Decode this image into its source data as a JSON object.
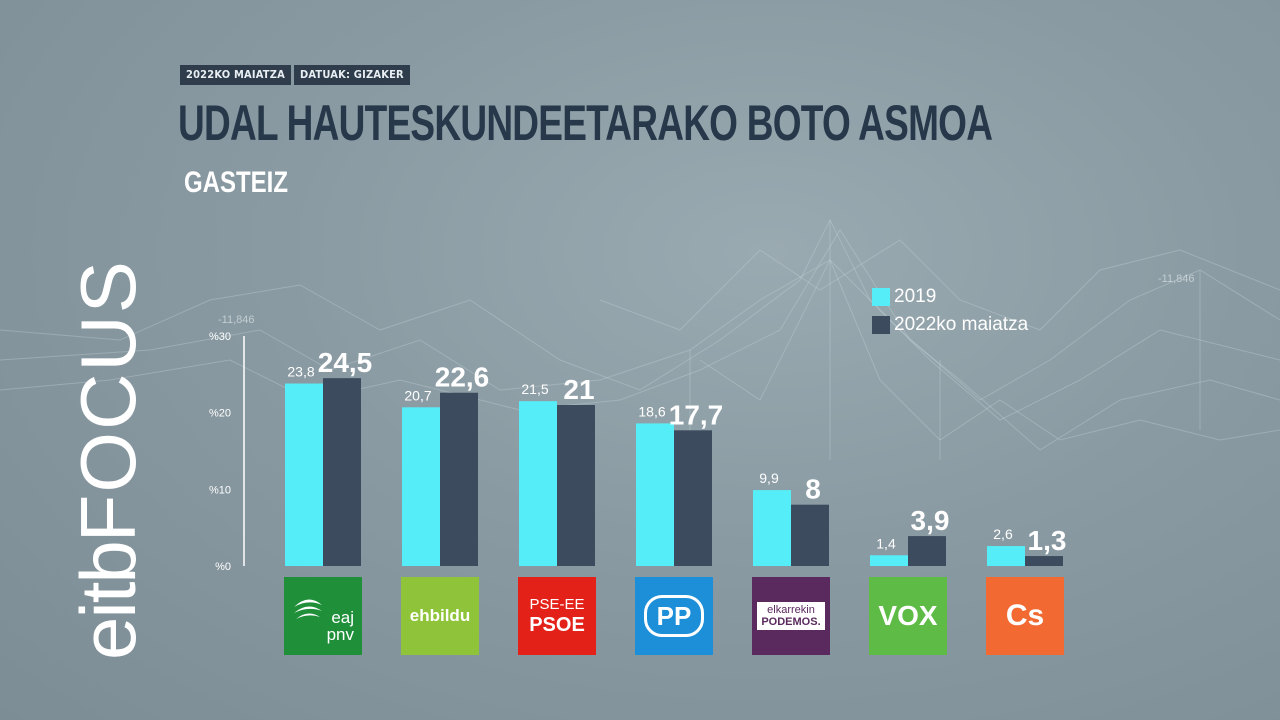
{
  "header": {
    "date_tag": "2022KO MAIATZA",
    "source_tag": "DATUAK: GIZAKER",
    "title": "UDAL HAUTESKUNDEETARAKO BOTO ASMOA",
    "subtitle": "GASTEIZ"
  },
  "brand": {
    "part1": "eitb",
    "part2": "FOCUS"
  },
  "background": {
    "readout_left": "-11,846",
    "readout_right": "-11,846"
  },
  "colors": {
    "series_2019": "#55eef8",
    "series_2022": "#3d4b5e",
    "pnv": "#1f8f3a",
    "ehbildu": "#8fc43a",
    "psoe": "#e32119",
    "pp": "#1c8fd8",
    "podemos": "#5a2a5e",
    "vox": "#5dbb46",
    "cs": "#f26a31"
  },
  "chart_data": {
    "type": "bar",
    "title": "UDAL HAUTESKUNDEETARAKO BOTO ASMOA",
    "subtitle": "GASTEIZ",
    "categories": [
      "EAJ-PNV",
      "EH Bildu",
      "PSE-EE PSOE",
      "PP",
      "Elkarrekin Podemos",
      "VOX",
      "Cs"
    ],
    "series": [
      {
        "name": "2019",
        "values": [
          23.8,
          20.7,
          21.5,
          18.6,
          9.9,
          1.4,
          2.6
        ],
        "labels": [
          "23,8",
          "20,7",
          "21,5",
          "18,6",
          "9,9",
          "1,4",
          "2,6"
        ]
      },
      {
        "name": "2022ko maiatza",
        "values": [
          24.5,
          22.6,
          21,
          17.7,
          8,
          3.9,
          1.3
        ],
        "labels": [
          "24,5",
          "22,6",
          "21",
          "17,7",
          "8",
          "3,9",
          "1,3"
        ]
      }
    ],
    "yticks": [
      "%0",
      "%10",
      "%20",
      "%30"
    ],
    "ytick_values": [
      0,
      10,
      20,
      30
    ],
    "ylim": [
      0,
      30
    ],
    "legend_position": "top-right",
    "grid": false
  },
  "party_logos": [
    {
      "id": "pnv",
      "line1": "eaj",
      "line2": "pnv"
    },
    {
      "id": "ehbildu",
      "line1": "ehbildu"
    },
    {
      "id": "psoe",
      "line1": "PSE-EE",
      "line2": "PSOE"
    },
    {
      "id": "pp",
      "line1": "PP"
    },
    {
      "id": "podemos",
      "line1": "elkarrekin",
      "line2": "PODEMOS."
    },
    {
      "id": "vox",
      "line1": "VOX"
    },
    {
      "id": "cs",
      "line1": "Cs"
    }
  ]
}
